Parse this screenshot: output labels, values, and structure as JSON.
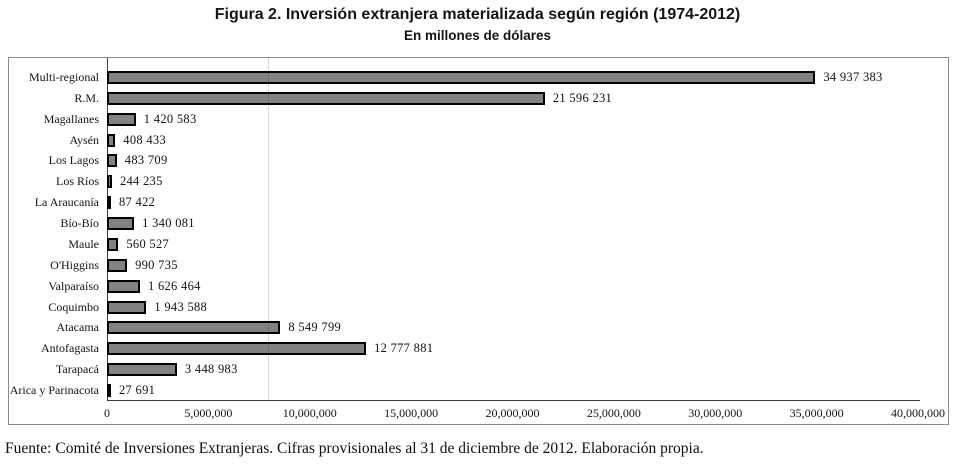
{
  "figure": {
    "title": "Figura 2. Inversión extranjera materializada según región (1974-2012)",
    "subtitle": "En millones de dólares",
    "source": "Fuente: Comité de Inversiones Extranjeras. Cifras provisionales al 31 de diciembre de 2012. Elaboración propia."
  },
  "chart_data": {
    "type": "bar",
    "orientation": "horizontal",
    "title": "Figura 2. Inversión extranjera materializada según región (1974-2012)",
    "subtitle": "En millones de dólares",
    "categories": [
      "Multi-regional",
      "R.M.",
      "Magallanes",
      "Aysén",
      "Los Lagos",
      "Los Ríos",
      "La Araucanía",
      "Bío-Bío",
      "Maule",
      "O'Higgins",
      "Valparaíso",
      "Coquimbo",
      "Atacama",
      "Antofagasta",
      "Tarapacá",
      "Arica y Parinacota"
    ],
    "values": [
      34937383,
      21596231,
      1420583,
      408433,
      483709,
      244235,
      87422,
      1340081,
      560527,
      990735,
      1626464,
      1943588,
      8549799,
      12777881,
      3448983,
      27691
    ],
    "value_labels": [
      "34 937 383",
      "21 596 231",
      "1 420 583",
      "408 433",
      "483 709",
      "244 235",
      "87 422",
      "1 340 081",
      "560 527",
      "990 735",
      "1 626 464",
      "1 943 588",
      "8 549 799",
      "12 777 881",
      "3 448 983",
      "27 691"
    ],
    "xlim": [
      0,
      40000000
    ],
    "x_ticks": [
      0,
      5000000,
      10000000,
      15000000,
      20000000,
      25000000,
      30000000,
      35000000,
      40000000
    ],
    "x_tick_labels": [
      "0",
      "5,000,000",
      "10,000,000",
      "15,000,000",
      "20,000,000",
      "25,000,000",
      "30,000,000",
      "35,000,000",
      "40,000,000"
    ],
    "xlabel": "",
    "ylabel": "",
    "grid": false,
    "legend": false,
    "bar_color": "#828282",
    "bar_border_color": "#000000"
  }
}
